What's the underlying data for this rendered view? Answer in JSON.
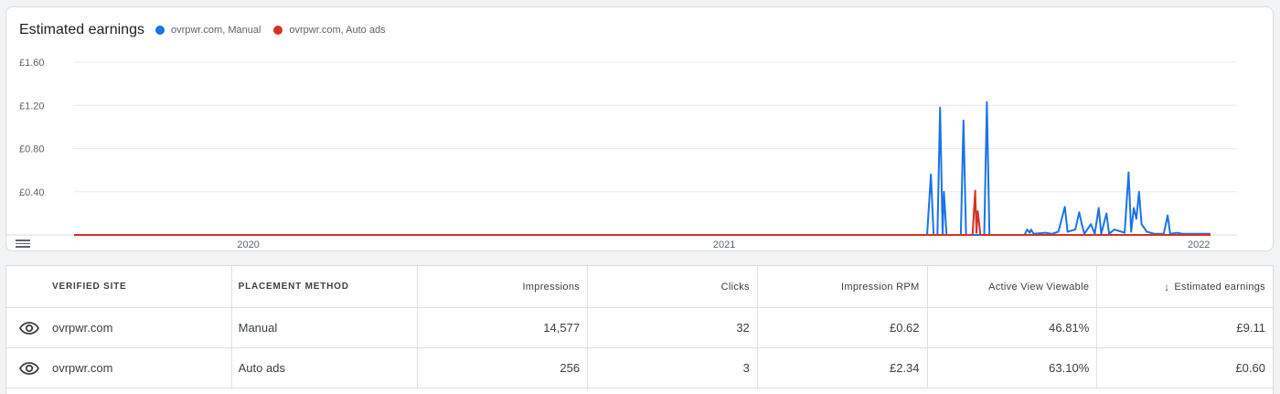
{
  "chart": {
    "title": "Estimated earnings",
    "legend": [
      {
        "label": "ovrpwr.com, Manual",
        "color": "#1a73e8"
      },
      {
        "label": "ovrpwr.com, Auto ads",
        "color": "#d93025"
      }
    ],
    "menu_icon": "menu-icon"
  },
  "chart_data": {
    "type": "line",
    "title": "Estimated earnings",
    "ylim": [
      0,
      1.6
    ],
    "yticks": [
      "£1.60",
      "£1.20",
      "£0.80",
      "£0.40"
    ],
    "ytick_values": [
      1.6,
      1.2,
      0.8,
      0.4
    ],
    "xticks": [
      {
        "label": "2020",
        "date": "2020-01-01"
      },
      {
        "label": "2021",
        "date": "2021-01-01"
      },
      {
        "label": "2022",
        "date": "2022-01-01"
      }
    ],
    "xlim": [
      "2019-08-20",
      "2022-01-10"
    ],
    "grid": true,
    "series": [
      {
        "name": "ovrpwr.com, Manual",
        "color": "#1a73e8",
        "points": [
          [
            "2019-08-20",
            0
          ],
          [
            "2021-06-06",
            0
          ],
          [
            "2021-06-09",
            0.56
          ],
          [
            "2021-06-11",
            0
          ],
          [
            "2021-06-14",
            0
          ],
          [
            "2021-06-16",
            1.18
          ],
          [
            "2021-06-18",
            0
          ],
          [
            "2021-06-19",
            0.4
          ],
          [
            "2021-06-21",
            0
          ],
          [
            "2021-07-02",
            0
          ],
          [
            "2021-07-04",
            1.06
          ],
          [
            "2021-07-06",
            0
          ],
          [
            "2021-07-20",
            0
          ],
          [
            "2021-07-22",
            1.23
          ],
          [
            "2021-07-24",
            0
          ],
          [
            "2021-08-20",
            0
          ],
          [
            "2021-08-22",
            0.05
          ],
          [
            "2021-08-24",
            0.02
          ],
          [
            "2021-08-25",
            0.05
          ],
          [
            "2021-08-27",
            0.01
          ],
          [
            "2021-09-05",
            0.02
          ],
          [
            "2021-09-10",
            0.01
          ],
          [
            "2021-09-15",
            0.03
          ],
          [
            "2021-09-20",
            0.26
          ],
          [
            "2021-09-22",
            0.03
          ],
          [
            "2021-09-28",
            0.05
          ],
          [
            "2021-10-01",
            0.21
          ],
          [
            "2021-10-03",
            0.1
          ],
          [
            "2021-10-05",
            0.01
          ],
          [
            "2021-10-10",
            0.1
          ],
          [
            "2021-10-13",
            0.01
          ],
          [
            "2021-10-16",
            0.25
          ],
          [
            "2021-10-18",
            0.01
          ],
          [
            "2021-10-22",
            0.2
          ],
          [
            "2021-10-24",
            0.01
          ],
          [
            "2021-10-28",
            0.05
          ],
          [
            "2021-11-05",
            0.02
          ],
          [
            "2021-11-08",
            0.58
          ],
          [
            "2021-11-10",
            0.03
          ],
          [
            "2021-11-12",
            0.25
          ],
          [
            "2021-11-14",
            0.15
          ],
          [
            "2021-11-16",
            0.4
          ],
          [
            "2021-11-18",
            0.1
          ],
          [
            "2021-11-22",
            0.03
          ],
          [
            "2021-11-28",
            0.01
          ],
          [
            "2021-12-05",
            0.01
          ],
          [
            "2021-12-08",
            0.18
          ],
          [
            "2021-12-10",
            0.01
          ],
          [
            "2021-12-15",
            0.02
          ],
          [
            "2021-12-20",
            0.01
          ],
          [
            "2022-01-10",
            0.01
          ]
        ]
      },
      {
        "name": "ovrpwr.com, Auto ads",
        "color": "#d93025",
        "points": [
          [
            "2019-08-20",
            0
          ],
          [
            "2021-07-11",
            0
          ],
          [
            "2021-07-13",
            0.41
          ],
          [
            "2021-07-14",
            0.02
          ],
          [
            "2021-07-15",
            0.22
          ],
          [
            "2021-07-17",
            0
          ],
          [
            "2022-01-10",
            0
          ]
        ]
      }
    ]
  },
  "table": {
    "headers": {
      "site": "VERIFIED SITE",
      "placement": "PLACEMENT METHOD",
      "impressions": "Impressions",
      "clicks": "Clicks",
      "rpm": "Impression RPM",
      "viewable": "Active View Viewable",
      "earnings": "Estimated earnings"
    },
    "sort_icon": "↓",
    "rows": [
      {
        "site": "ovrpwr.com",
        "placement": "Manual",
        "impressions": "14,577",
        "clicks": "32",
        "rpm": "£0.62",
        "viewable": "46.81%",
        "earnings": "£9.11"
      },
      {
        "site": "ovrpwr.com",
        "placement": "Auto ads",
        "impressions": "256",
        "clicks": "3",
        "rpm": "£2.34",
        "viewable": "63.10%",
        "earnings": "£0.60"
      }
    ]
  }
}
